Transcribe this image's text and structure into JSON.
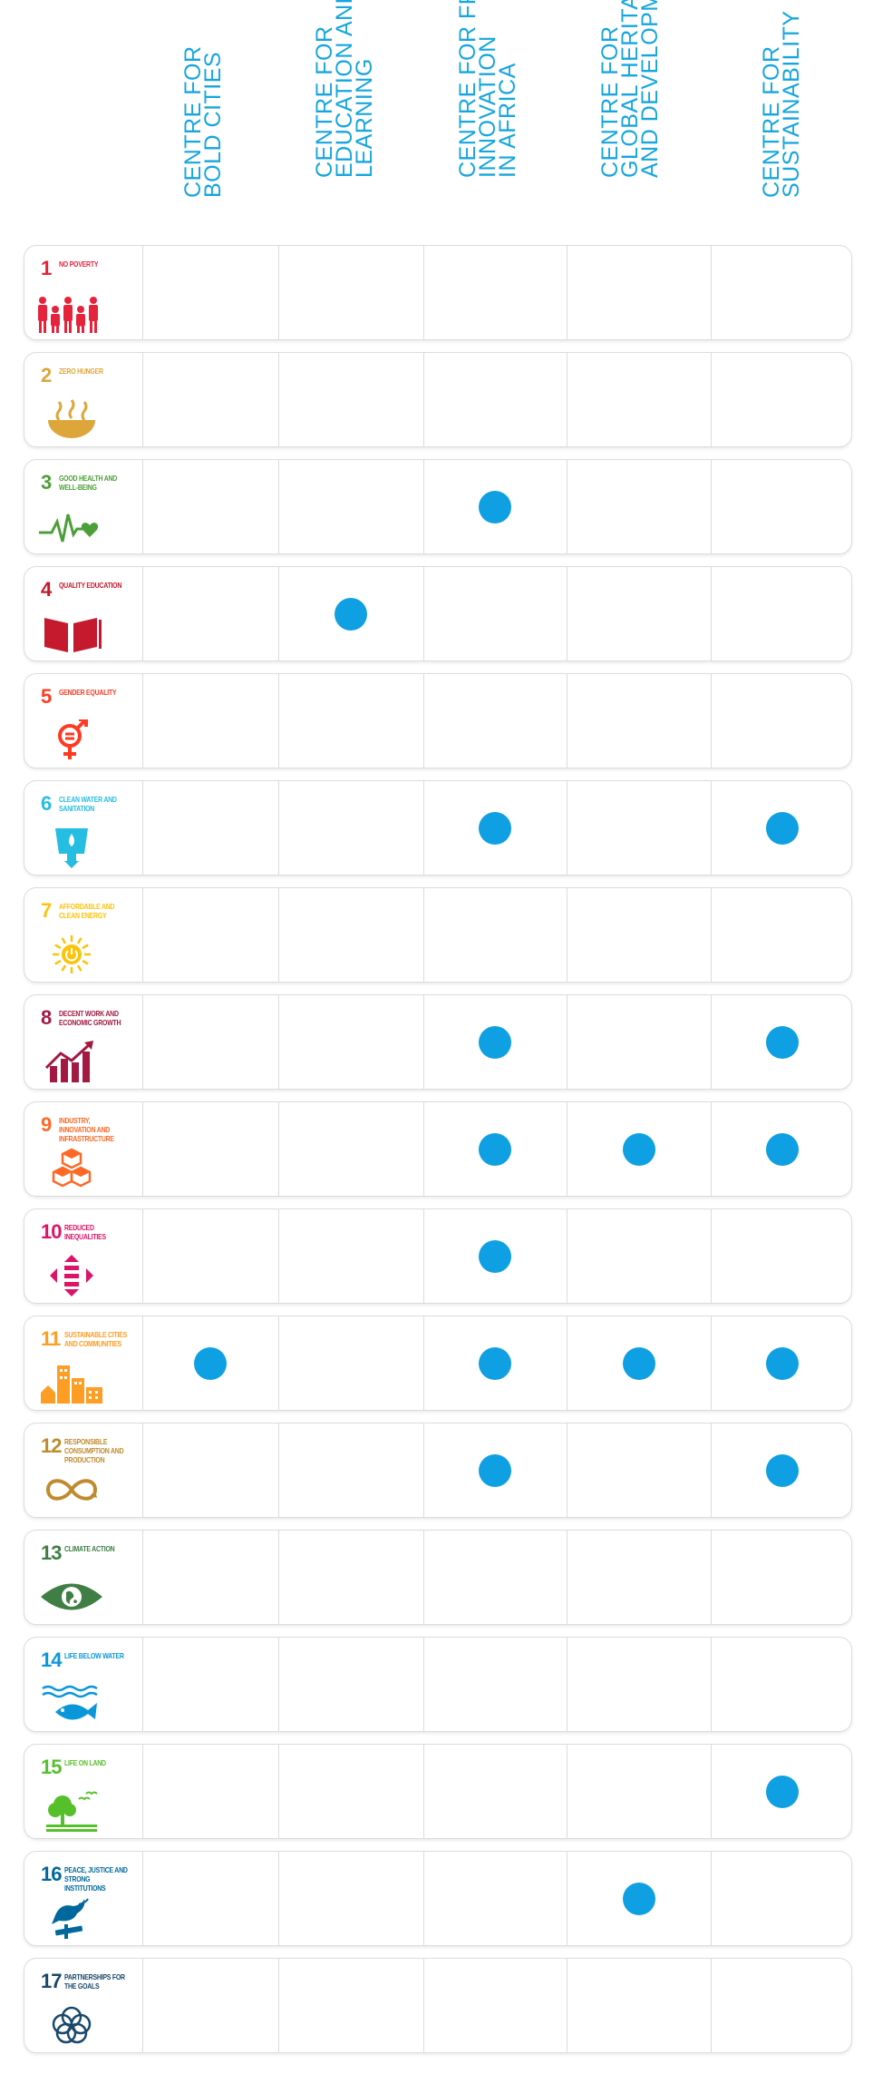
{
  "accent_dot": "#0fa0e3",
  "columns": [
    {
      "lines": [
        "CENTRE FOR",
        "BOLD CITIES"
      ]
    },
    {
      "lines": [
        "CENTRE FOR",
        "EDUCATION AND",
        "LEARNING"
      ]
    },
    {
      "lines": [
        "CENTRE FOR FRUGAL",
        "INNOVATION",
        "IN AFRICA"
      ]
    },
    {
      "lines": [
        "CENTRE FOR",
        "GLOBAL HERITAGE",
        "AND DEVELOPMENT"
      ]
    },
    {
      "lines": [
        "CENTRE FOR",
        "SUSTAINABILITY"
      ]
    }
  ],
  "goals": [
    {
      "num": "1",
      "name": "NO POVERTY",
      "color": "#e5243b",
      "icon": "people-icon",
      "marks": [
        false,
        false,
        false,
        false,
        false
      ]
    },
    {
      "num": "2",
      "name": "ZERO HUNGER",
      "color": "#dda63a",
      "icon": "bowl-icon",
      "marks": [
        false,
        false,
        false,
        false,
        false
      ]
    },
    {
      "num": "3",
      "name": "GOOD HEALTH AND WELL-BEING",
      "color": "#4c9f38",
      "icon": "heartbeat-icon",
      "marks": [
        false,
        false,
        true,
        false,
        false
      ]
    },
    {
      "num": "4",
      "name": "QUALITY EDUCATION",
      "color": "#c5192d",
      "icon": "book-icon",
      "marks": [
        false,
        true,
        false,
        false,
        false
      ]
    },
    {
      "num": "5",
      "name": "GENDER EQUALITY",
      "color": "#ff3a21",
      "icon": "gender-icon",
      "marks": [
        false,
        false,
        false,
        false,
        false
      ]
    },
    {
      "num": "6",
      "name": "CLEAN WATER AND SANITATION",
      "color": "#26bde2",
      "icon": "water-icon",
      "marks": [
        false,
        false,
        true,
        false,
        true
      ]
    },
    {
      "num": "7",
      "name": "AFFORDABLE AND CLEAN ENERGY",
      "color": "#fcc30b",
      "icon": "sun-power-icon",
      "marks": [
        false,
        false,
        false,
        false,
        false
      ]
    },
    {
      "num": "8",
      "name": "DECENT WORK AND ECONOMIC GROWTH",
      "color": "#a21942",
      "icon": "growth-chart-icon",
      "marks": [
        false,
        false,
        true,
        false,
        true
      ]
    },
    {
      "num": "9",
      "name": "INDUSTRY, INNOVATION AND INFRASTRUCTURE",
      "color": "#fd6925",
      "icon": "cubes-icon",
      "marks": [
        false,
        false,
        true,
        true,
        true
      ]
    },
    {
      "num": "10",
      "name": "REDUCED INEQUALITIES",
      "color": "#dd1367",
      "icon": "equality-icon",
      "marks": [
        false,
        false,
        true,
        false,
        false
      ]
    },
    {
      "num": "11",
      "name": "SUSTAINABLE CITIES AND COMMUNITIES",
      "color": "#fd9d24",
      "icon": "city-icon",
      "marks": [
        true,
        false,
        true,
        true,
        true
      ]
    },
    {
      "num": "12",
      "name": "RESPONSIBLE CONSUMPTION AND PRODUCTION",
      "color": "#bf8b2e",
      "icon": "infinity-icon",
      "marks": [
        false,
        false,
        true,
        false,
        true
      ]
    },
    {
      "num": "13",
      "name": "CLIMATE ACTION",
      "color": "#3f7e44",
      "icon": "eye-globe-icon",
      "marks": [
        false,
        false,
        false,
        false,
        false
      ]
    },
    {
      "num": "14",
      "name": "LIFE BELOW WATER",
      "color": "#0a97d9",
      "icon": "fish-icon",
      "marks": [
        false,
        false,
        false,
        false,
        false
      ]
    },
    {
      "num": "15",
      "name": "LIFE ON LAND",
      "color": "#56c02b",
      "icon": "tree-icon",
      "marks": [
        false,
        false,
        false,
        false,
        true
      ]
    },
    {
      "num": "16",
      "name": "PEACE, JUSTICE AND STRONG INSTITUTIONS",
      "color": "#00689d",
      "icon": "dove-gavel-icon",
      "marks": [
        false,
        false,
        false,
        true,
        false
      ]
    },
    {
      "num": "17",
      "name": "PARTNERSHIPS FOR THE GOALS",
      "color": "#19486a",
      "icon": "rings-icon",
      "marks": [
        false,
        false,
        false,
        false,
        false
      ]
    }
  ]
}
